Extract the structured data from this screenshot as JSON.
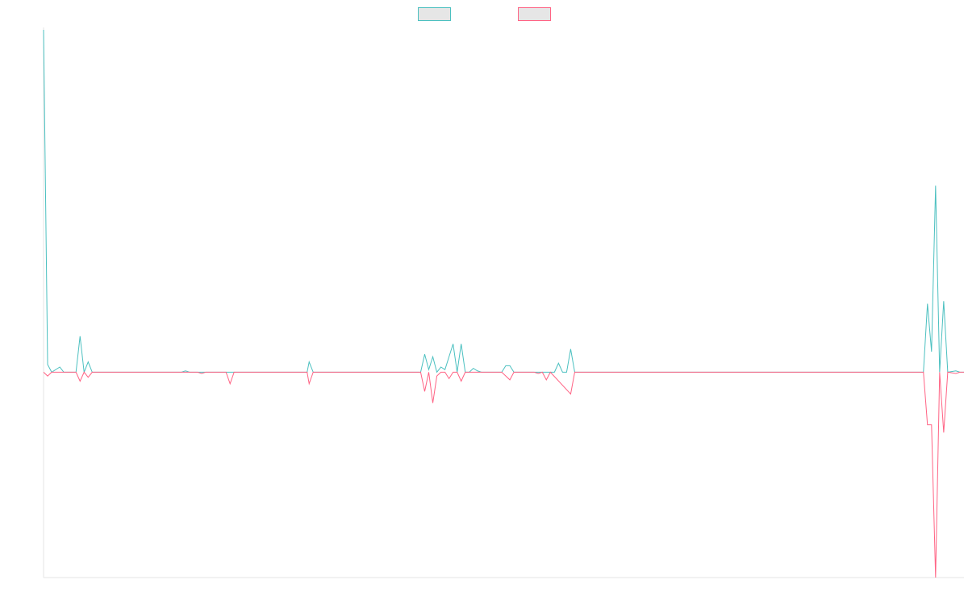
{
  "chart_data": {
    "type": "line",
    "title": "",
    "xlabel": "",
    "ylabel": "",
    "x_range": [
      0,
      227
    ],
    "ylim": [
      -48,
      80
    ],
    "grid": false,
    "legend": {
      "placement": "top-center"
    },
    "series": [
      {
        "name": "",
        "color": "#4bc0c0",
        "points": [
          [
            0,
            80
          ],
          [
            1,
            1.8
          ],
          [
            2,
            0
          ],
          [
            4,
            1.2
          ],
          [
            5,
            0
          ],
          [
            8,
            0
          ],
          [
            9,
            8.4
          ],
          [
            10,
            0
          ],
          [
            11,
            2.4
          ],
          [
            12,
            0
          ],
          [
            34,
            0
          ],
          [
            35,
            0.3
          ],
          [
            36,
            0
          ],
          [
            65,
            0
          ],
          [
            65.5,
            2.4
          ],
          [
            66.5,
            0
          ],
          [
            93,
            0
          ],
          [
            94,
            4.2
          ],
          [
            95,
            0.6
          ],
          [
            96,
            3.6
          ],
          [
            97,
            0
          ],
          [
            98,
            1.2
          ],
          [
            99,
            0.6
          ],
          [
            100,
            3.6
          ],
          [
            101,
            6.6
          ],
          [
            102,
            0
          ],
          [
            103,
            6.6
          ],
          [
            104,
            0
          ],
          [
            105,
            0
          ],
          [
            106,
            0.9
          ],
          [
            107,
            0.3
          ],
          [
            108,
            0
          ],
          [
            113,
            0
          ],
          [
            114,
            1.5
          ],
          [
            115,
            1.5
          ],
          [
            116,
            0
          ],
          [
            126,
            0
          ],
          [
            127,
            2.1
          ],
          [
            128,
            0
          ],
          [
            129,
            0
          ],
          [
            130,
            5.4
          ],
          [
            131,
            0
          ],
          [
            217,
            0
          ],
          [
            218,
            16
          ],
          [
            219,
            4.8
          ],
          [
            220,
            43.6
          ],
          [
            221,
            0
          ],
          [
            222,
            16.6
          ],
          [
            223,
            0
          ],
          [
            225,
            0.3
          ],
          [
            226,
            0
          ],
          [
            227,
            0
          ]
        ]
      },
      {
        "name": "",
        "color": "#ff6384",
        "points": [
          [
            0,
            0
          ],
          [
            1,
            -0.9
          ],
          [
            2,
            0
          ],
          [
            8,
            0
          ],
          [
            9,
            -2.1
          ],
          [
            10,
            0
          ],
          [
            11,
            -1.2
          ],
          [
            12,
            0
          ],
          [
            38,
            0
          ],
          [
            39,
            -0.3
          ],
          [
            40,
            0
          ],
          [
            45,
            0
          ],
          [
            46,
            -2.7
          ],
          [
            47,
            0
          ],
          [
            65,
            0
          ],
          [
            65.5,
            -2.7
          ],
          [
            66.5,
            0
          ],
          [
            93,
            0
          ],
          [
            94,
            -4.5
          ],
          [
            95,
            0
          ],
          [
            96,
            -7.2
          ],
          [
            97,
            -0.9
          ],
          [
            98,
            0
          ],
          [
            99,
            0
          ],
          [
            100,
            -1.5
          ],
          [
            101,
            0
          ],
          [
            102,
            0
          ],
          [
            103,
            -2.1
          ],
          [
            104,
            0
          ],
          [
            108,
            0
          ],
          [
            113,
            0
          ],
          [
            114,
            -0.9
          ],
          [
            115,
            -1.8
          ],
          [
            116,
            0
          ],
          [
            121,
            0
          ],
          [
            122,
            -0.3
          ],
          [
            123,
            0
          ],
          [
            124,
            -1.8
          ],
          [
            125,
            0
          ],
          [
            130,
            -5.1
          ],
          [
            131,
            0
          ],
          [
            217,
            0
          ],
          [
            218,
            -12.3
          ],
          [
            219,
            -12.3
          ],
          [
            220,
            -48
          ],
          [
            221,
            0
          ],
          [
            222,
            -14.1
          ],
          [
            223,
            0
          ],
          [
            225,
            -0.3
          ],
          [
            226,
            0
          ],
          [
            227,
            0
          ]
        ]
      }
    ]
  }
}
